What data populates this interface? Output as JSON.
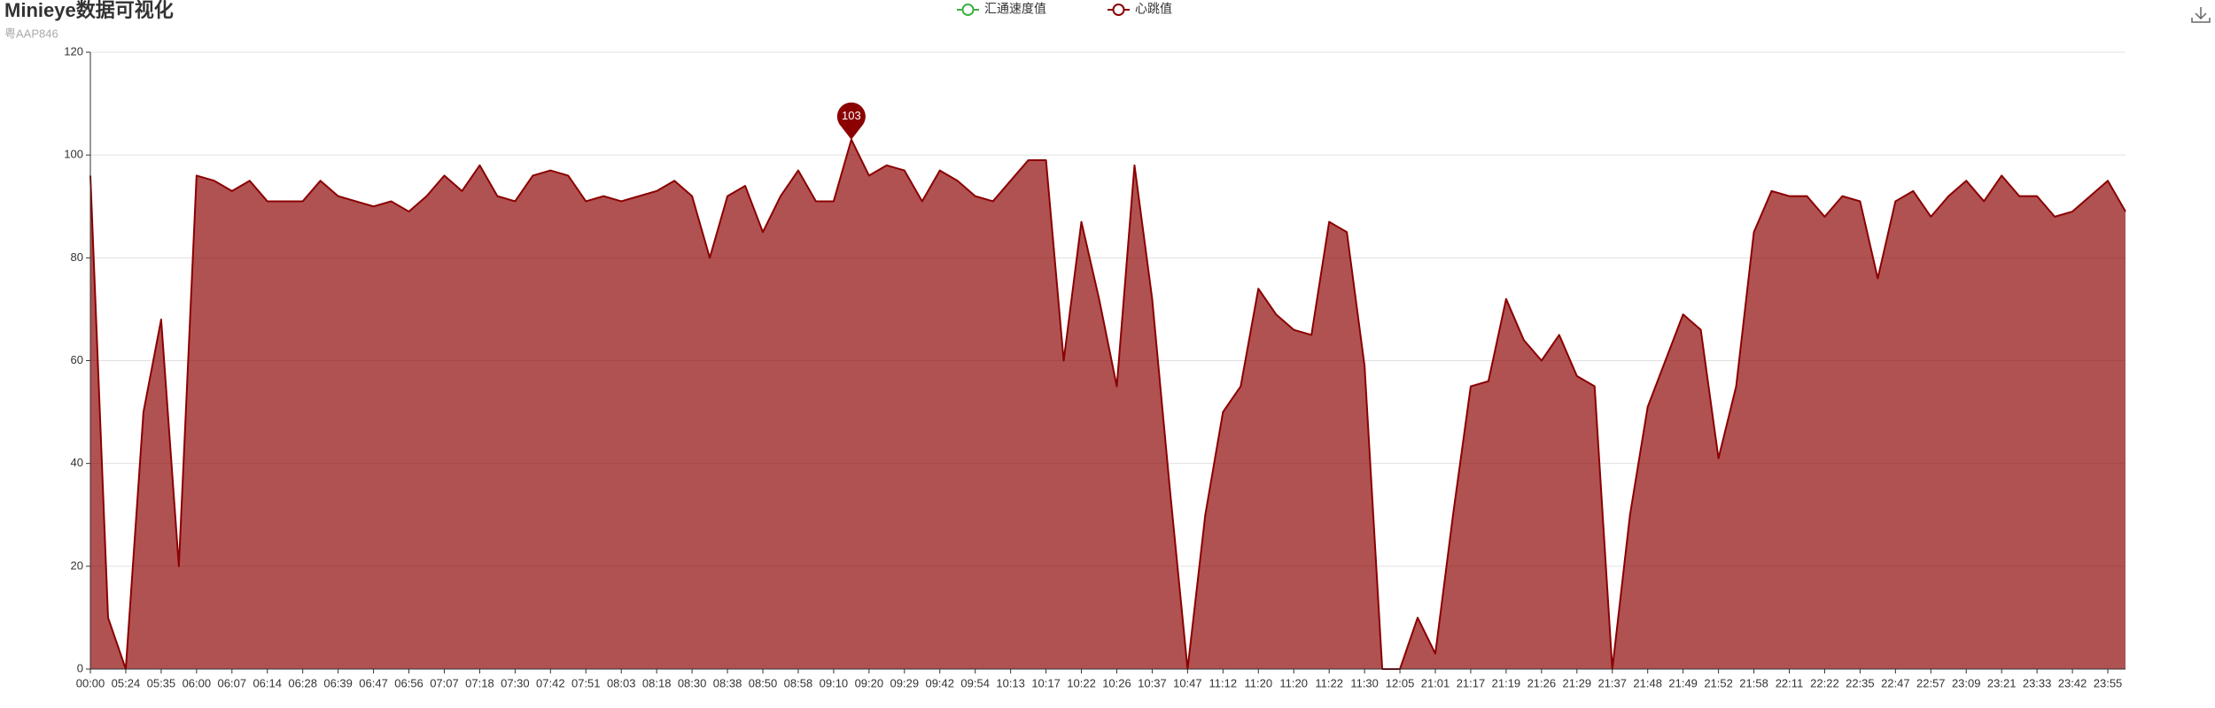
{
  "chart_data": {
    "type": "area",
    "title": "Minieye数据可视化",
    "subtitle": "粤AAP846",
    "categories": [
      "00:00",
      null,
      "05:24",
      null,
      "05:35",
      null,
      "06:00",
      null,
      "06:07",
      null,
      "06:14",
      null,
      "06:28",
      null,
      "06:39",
      null,
      "06:47",
      null,
      "06:56",
      null,
      "07:07",
      null,
      "07:18",
      null,
      "07:30",
      null,
      "07:42",
      null,
      "07:51",
      null,
      "08:03",
      null,
      "08:18",
      null,
      "08:30",
      null,
      "08:38",
      null,
      "08:50",
      null,
      "08:58",
      null,
      "09:10",
      null,
      "09:20",
      null,
      "09:29",
      null,
      "09:42",
      null,
      "09:54",
      null,
      "10:13",
      null,
      "10:17",
      null,
      "10:22",
      null,
      "10:26",
      null,
      "10:37",
      null,
      "10:47",
      null,
      "11:12",
      null,
      "11:20",
      null,
      "11:20",
      null,
      "11:22",
      null,
      "11:30",
      null,
      "12:05",
      null,
      "21:01",
      null,
      "21:17",
      null,
      "21:19",
      null,
      "21:26",
      null,
      "21:29",
      null,
      "21:37",
      null,
      "21:48",
      null,
      "21:49",
      null,
      "21:52",
      null,
      "21:58",
      null,
      "22:11",
      null,
      "22:22",
      null,
      "22:35",
      null,
      "22:47",
      null,
      "22:57",
      null,
      "23:09",
      null,
      "23:21",
      null,
      "23:33",
      null,
      "23:42",
      null,
      "23:55",
      null
    ],
    "series": [
      {
        "name": "汇通速度值",
        "color": "#3cb043",
        "values": [
          null,
          null,
          null,
          null,
          null,
          null,
          null,
          null,
          null,
          null,
          null,
          null,
          null,
          null,
          null,
          null,
          null,
          null,
          null,
          null,
          null,
          null,
          null,
          null,
          null,
          null,
          null,
          null,
          null,
          null,
          null,
          null,
          null,
          null,
          null,
          null,
          null,
          null,
          null,
          null,
          null,
          null,
          null,
          null,
          null,
          null,
          null,
          null,
          null,
          null,
          null,
          null,
          null,
          null,
          null,
          null,
          null,
          null,
          null,
          null,
          null,
          null,
          null,
          null,
          null,
          null,
          null,
          null,
          null,
          null,
          null,
          null,
          null,
          null,
          null,
          null,
          null,
          null,
          null,
          null,
          null,
          null,
          null,
          null,
          null,
          null,
          null,
          null,
          null,
          null,
          null,
          null,
          null,
          null,
          null,
          null,
          null,
          null,
          null,
          null,
          null,
          null,
          null,
          null,
          null,
          null,
          null,
          null,
          null,
          null,
          null,
          null,
          null,
          null,
          null,
          null
        ]
      },
      {
        "name": "心跳值",
        "color": "#8b0000",
        "values": [
          96,
          10,
          0,
          50,
          68,
          20,
          96,
          95,
          93,
          95,
          91,
          91,
          91,
          95,
          92,
          91,
          90,
          91,
          89,
          92,
          96,
          93,
          98,
          92,
          91,
          96,
          97,
          96,
          91,
          92,
          91,
          92,
          93,
          95,
          92,
          80,
          92,
          94,
          85,
          92,
          97,
          91,
          91,
          103,
          96,
          98,
          97,
          91,
          97,
          95,
          92,
          91,
          95,
          99,
          99,
          60,
          87,
          72,
          55,
          98,
          72,
          35,
          0,
          30,
          50,
          55,
          74,
          69,
          66,
          65,
          87,
          85,
          59,
          0,
          0,
          10,
          3,
          30,
          55,
          56,
          72,
          64,
          60,
          65,
          57,
          55,
          0,
          30,
          51,
          60,
          69,
          66,
          41,
          55,
          85,
          93,
          92,
          92,
          88,
          92,
          91,
          76,
          91,
          93,
          88,
          92,
          95,
          91,
          96,
          92,
          92,
          88,
          89,
          92,
          95,
          89
        ]
      }
    ],
    "ylim": [
      0,
      120
    ],
    "yticks": [
      0,
      20,
      40,
      60,
      80,
      100,
      120
    ],
    "grid": true,
    "mark_point": {
      "series": 1,
      "index": 43
    }
  }
}
